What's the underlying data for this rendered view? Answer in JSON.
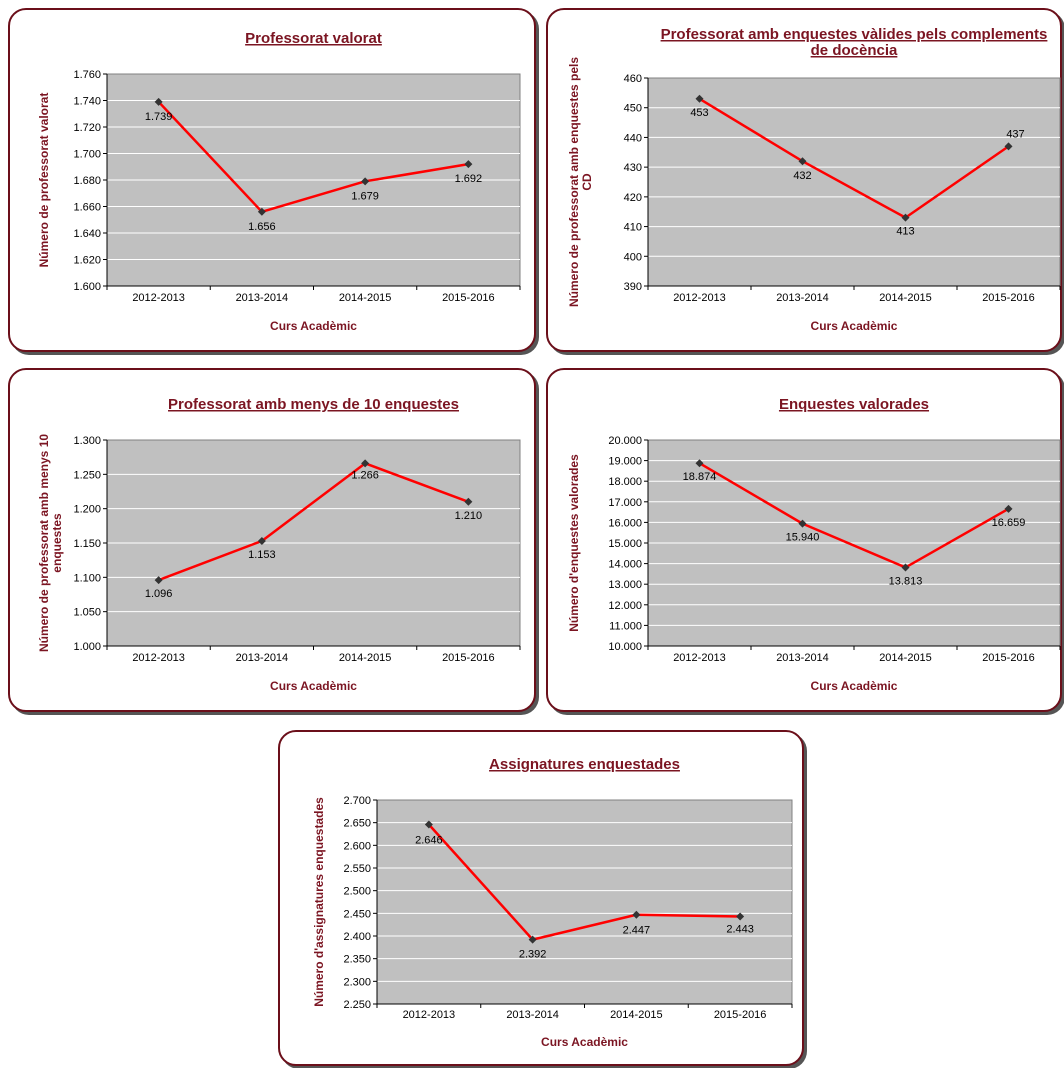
{
  "colors": {
    "plot_bg": "#c0c0c0",
    "line": "#ff0000",
    "marker": "#333333",
    "title": "#7b1522",
    "border": "#6b0f1a"
  },
  "chart_data": [
    {
      "type": "line",
      "title_lines": [
        "Professorat valorat"
      ],
      "ylabel_lines": [
        "Número de professorat valorat"
      ],
      "xlabel": "Curs Acadèmic",
      "categories": [
        "2012-2013",
        "2013-2014",
        "2014-2015",
        "2015-2016"
      ],
      "values": [
        1739,
        1656,
        1679,
        1692
      ],
      "labels": [
        "1.739",
        "1.656",
        "1.679",
        "1.692"
      ],
      "yticks": [
        "1.600",
        "1.620",
        "1.640",
        "1.660",
        "1.680",
        "1.700",
        "1.720",
        "1.740",
        "1.760"
      ],
      "ylim": [
        1600,
        1760
      ],
      "grid": true
    },
    {
      "type": "line",
      "title_lines": [
        "Professorat amb enquestes vàlides pels complements",
        "de docència"
      ],
      "ylabel_lines": [
        "Número de professorat amb enquestes pels",
        "CD"
      ],
      "xlabel": "Curs Acadèmic",
      "categories": [
        "2012-2013",
        "2013-2014",
        "2014-2015",
        "2015-2016"
      ],
      "values": [
        453,
        432,
        413,
        437
      ],
      "labels": [
        "453",
        "432",
        "413",
        "437"
      ],
      "yticks": [
        "390",
        "400",
        "410",
        "420",
        "430",
        "440",
        "450",
        "460"
      ],
      "ylim": [
        390,
        460
      ],
      "grid": true
    },
    {
      "type": "line",
      "title_lines": [
        "Professorat amb menys de 10 enquestes"
      ],
      "ylabel_lines": [
        "Número de professorat amb menys 10",
        "enquestes"
      ],
      "xlabel": "Curs Acadèmic",
      "categories": [
        "2012-2013",
        "2013-2014",
        "2014-2015",
        "2015-2016"
      ],
      "values": [
        1096,
        1153,
        1266,
        1210
      ],
      "labels": [
        "1.096",
        "1.153",
        "1.266",
        "1.210"
      ],
      "yticks": [
        "1.000",
        "1.050",
        "1.100",
        "1.150",
        "1.200",
        "1.250",
        "1.300"
      ],
      "ylim": [
        1000,
        1300
      ],
      "grid": true
    },
    {
      "type": "line",
      "title_lines": [
        "Enquestes valorades"
      ],
      "ylabel_lines": [
        "Número d'enquestes valorades"
      ],
      "xlabel": "Curs Acadèmic",
      "categories": [
        "2012-2013",
        "2013-2014",
        "2014-2015",
        "2015-2016"
      ],
      "values": [
        18874,
        15940,
        13813,
        16659
      ],
      "labels": [
        "18.874",
        "15.940",
        "13.813",
        "16.659"
      ],
      "yticks": [
        "10.000",
        "11.000",
        "12.000",
        "13.000",
        "14.000",
        "15.000",
        "16.000",
        "17.000",
        "18.000",
        "19.000",
        "20.000"
      ],
      "ylim": [
        10000,
        20000
      ],
      "grid": true
    },
    {
      "type": "line",
      "title_lines": [
        "Assignatures enquestades"
      ],
      "ylabel_lines": [
        "Número d'assignatures enquestades"
      ],
      "xlabel": "Curs Acadèmic",
      "categories": [
        "2012-2013",
        "2013-2014",
        "2014-2015",
        "2015-2016"
      ],
      "values": [
        2646,
        2392,
        2447,
        2443
      ],
      "labels": [
        "2.646",
        "2.392",
        "2.447",
        "2.443"
      ],
      "yticks": [
        "2.250",
        "2.300",
        "2.350",
        "2.400",
        "2.450",
        "2.500",
        "2.550",
        "2.600",
        "2.650",
        "2.700"
      ],
      "ylim": [
        2250,
        2700
      ],
      "grid": true
    }
  ]
}
